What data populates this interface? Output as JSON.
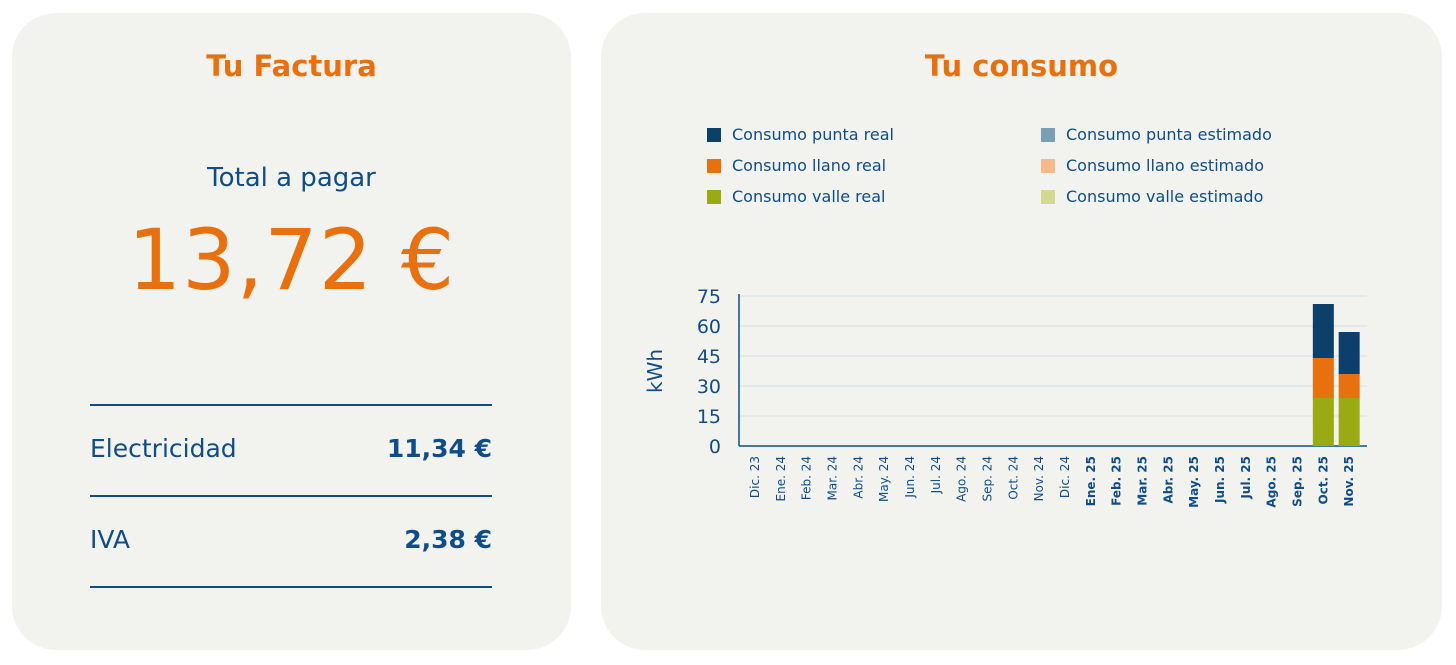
{
  "invoice": {
    "title": "Tu Factura",
    "total_label": "Total a pagar",
    "total_amount": "13,72 €",
    "items": [
      {
        "label": "Electricidad",
        "value": "11,34 €"
      },
      {
        "label": "IVA",
        "value": "2,38 €"
      }
    ]
  },
  "consumption": {
    "title": "Tu consumo",
    "legend": [
      {
        "label": "Consumo punta real",
        "color": "#0d3f6b"
      },
      {
        "label": "Consumo punta estimado",
        "color": "#7a9fb5"
      },
      {
        "label": "Consumo llano real",
        "color": "#e8700f"
      },
      {
        "label": "Consumo llano estimado",
        "color": "#f5b98a"
      },
      {
        "label": "Consumo valle real",
        "color": "#9aaa12"
      },
      {
        "label": "Consumo valle estimado",
        "color": "#d3d98f"
      }
    ]
  },
  "chart_data": {
    "type": "bar",
    "stacked": true,
    "ylabel": "kWh",
    "ylim": [
      0,
      75
    ],
    "yticks": [
      0,
      15,
      30,
      45,
      60,
      75
    ],
    "grid": true,
    "categories": [
      "Dic. 23",
      "Ene. 24",
      "Feb. 24",
      "Mar. 24",
      "Abr. 24",
      "May. 24",
      "Jun. 24",
      "Jul. 24",
      "Ago. 24",
      "Sep. 24",
      "Oct. 24",
      "Nov. 24",
      "Dic. 24",
      "Ene. 25",
      "Feb. 25",
      "Mar. 25",
      "Abr. 25",
      "May. 25",
      "Jun. 25",
      "Jul. 25",
      "Ago. 25",
      "Sep. 25",
      "Oct. 25",
      "Nov. 25"
    ],
    "bold_from_index": 13,
    "series": [
      {
        "name": "Consumo valle real",
        "color": "#9aaa12",
        "values": [
          0,
          0,
          0,
          0,
          0,
          0,
          0,
          0,
          0,
          0,
          0,
          0,
          0,
          0,
          0,
          0,
          0,
          0,
          0,
          0,
          0,
          0,
          24,
          24
        ]
      },
      {
        "name": "Consumo llano real",
        "color": "#e8700f",
        "values": [
          0,
          0,
          0,
          0,
          0,
          0,
          0,
          0,
          0,
          0,
          0,
          0,
          0,
          0,
          0,
          0,
          0,
          0,
          0,
          0,
          0,
          0,
          20,
          12
        ]
      },
      {
        "name": "Consumo punta real",
        "color": "#0d3f6b",
        "values": [
          0,
          0,
          0,
          0,
          0,
          0,
          0,
          0,
          0,
          0,
          0,
          0,
          0,
          0,
          0,
          0,
          0,
          0,
          0,
          0,
          0,
          0,
          27,
          21
        ]
      }
    ]
  }
}
